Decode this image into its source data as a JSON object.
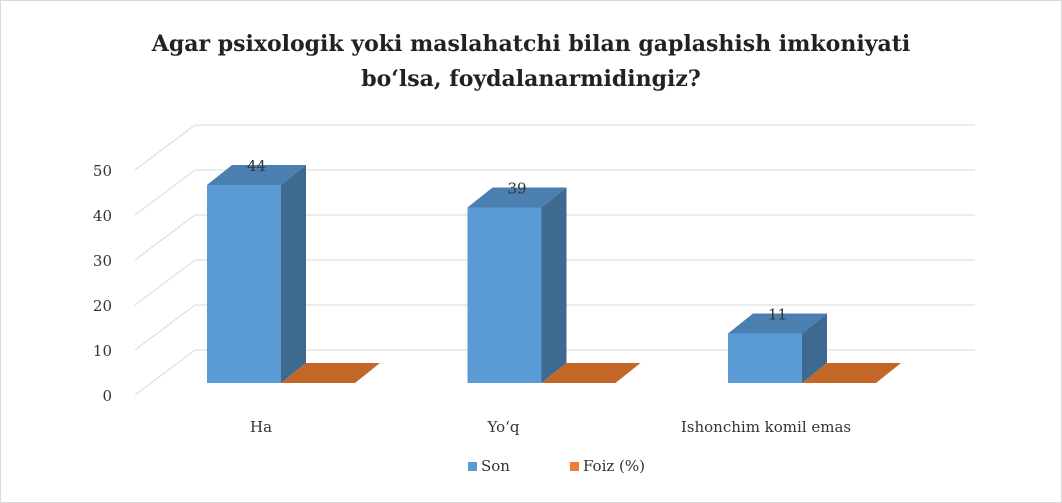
{
  "chart_data": {
    "type": "bar3d",
    "title": [
      "Agar psixologik yoki maslahatchi bilan gaplashish imkoniyati",
      "bo‘lsa,  foydalanarmidingiz?"
    ],
    "categories": [
      "Ha",
      "Yo‘q",
      "Ishonchim komil emas"
    ],
    "series": [
      {
        "name": "Son",
        "color": "#5b9bd5",
        "values": [
          44,
          39,
          11
        ]
      },
      {
        "name": "Foiz (%)",
        "color": "#ed7d31",
        "values": [
          0,
          0,
          0
        ]
      }
    ],
    "ylim": [
      0,
      50
    ],
    "yticks": [
      0,
      10,
      20,
      30,
      40,
      50
    ],
    "grid": true,
    "legend": "bottom"
  }
}
